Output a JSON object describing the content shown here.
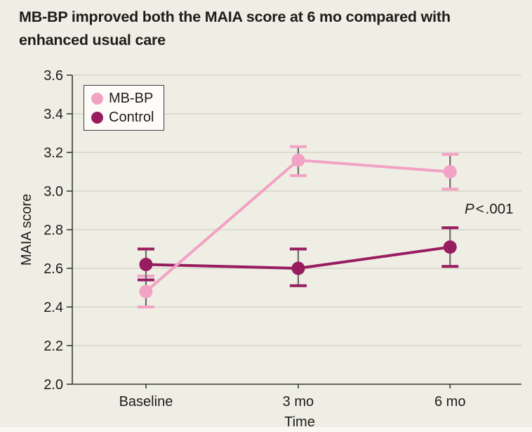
{
  "figure": {
    "title_lines": [
      "MB-BP improved both the MAIA score at 6 mo compared with",
      "enhanced usual care"
    ]
  },
  "colors": {
    "background": "#efeee4",
    "grid": "#d9d8ce",
    "axis": "#3a3a38",
    "error_stem": "#6e6d69",
    "text": "#1d1c1a",
    "legend_background": "#fdfcf8"
  },
  "chart_data": {
    "type": "line",
    "title": "MB-BP improved both the MAIA score at 6 mo compared with enhanced usual care",
    "xlabel": "Time",
    "ylabel": "MAIA score",
    "x_categories": [
      "Baseline",
      "3 mo",
      "6 mo"
    ],
    "ylim": [
      2.0,
      3.6
    ],
    "yticks": [
      2.0,
      2.2,
      2.4,
      2.6,
      2.8,
      3.0,
      3.2,
      3.4,
      3.6
    ],
    "grid": true,
    "legend_position": "top-left",
    "series": [
      {
        "name": "MB-BP",
        "color": "#f2a2c4",
        "values": [
          2.48,
          3.16,
          3.1
        ],
        "ci_low": [
          2.4,
          3.08,
          3.01
        ],
        "ci_high": [
          2.56,
          3.23,
          3.19
        ]
      },
      {
        "name": "Control",
        "color": "#981d60",
        "values": [
          2.62,
          2.6,
          2.71
        ],
        "ci_low": [
          2.54,
          2.51,
          2.61
        ],
        "ci_high": [
          2.7,
          2.7,
          2.81
        ]
      }
    ],
    "annotation": {
      "italic": "P",
      "operator": "<",
      "value": ".001"
    }
  }
}
